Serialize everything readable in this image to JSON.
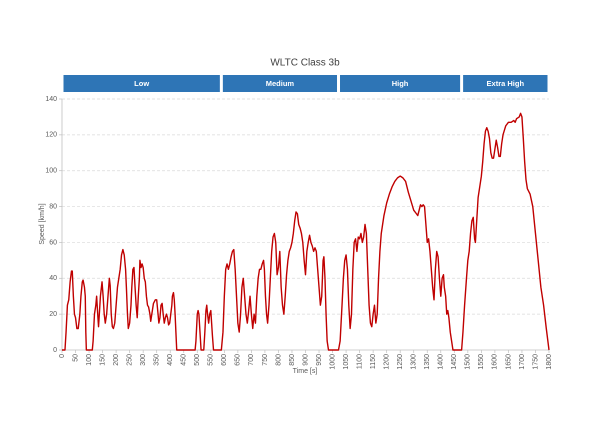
{
  "chart_data": {
    "type": "line",
    "title": "WLTC Class 3b",
    "x_label": "Time [s]",
    "y_label": "Speed [km/h]",
    "phases": [
      {
        "name": "Low",
        "start": 0,
        "end": 589
      },
      {
        "name": "Medium",
        "start": 589,
        "end": 1022
      },
      {
        "name": "High",
        "start": 1022,
        "end": 1477
      },
      {
        "name": "Extra High",
        "start": 1477,
        "end": 1800
      }
    ],
    "phase_color": "#2e75b6",
    "color": "#c00000",
    "grid": true,
    "xlim": [
      0,
      1800
    ],
    "ylim": [
      0,
      140
    ],
    "xticks": [
      0,
      50,
      100,
      150,
      200,
      250,
      300,
      350,
      400,
      450,
      500,
      550,
      600,
      650,
      700,
      750,
      800,
      850,
      900,
      950,
      1000,
      1050,
      1100,
      1150,
      1200,
      1250,
      1300,
      1350,
      1400,
      1450,
      1500,
      1550,
      1600,
      1650,
      1700,
      1750,
      1800
    ],
    "yticks": [
      0,
      20,
      40,
      60,
      80,
      100,
      120,
      140
    ],
    "x": [
      0,
      11,
      15,
      20,
      25,
      30,
      35,
      38,
      42,
      46,
      50,
      55,
      60,
      66,
      70,
      75,
      78,
      83,
      86,
      88,
      90,
      112,
      115,
      120,
      125,
      128,
      132,
      135,
      138,
      142,
      148,
      152,
      156,
      160,
      165,
      170,
      175,
      178,
      182,
      186,
      190,
      195,
      200,
      205,
      210,
      215,
      220,
      225,
      230,
      235,
      238,
      242,
      245,
      250,
      255,
      258,
      262,
      266,
      270,
      274,
      278,
      282,
      286,
      288,
      292,
      296,
      300,
      304,
      308,
      312,
      316,
      320,
      325,
      328,
      332,
      338,
      345,
      350,
      355,
      358,
      362,
      366,
      370,
      374,
      378,
      382,
      386,
      390,
      394,
      398,
      402,
      406,
      408,
      412,
      415,
      418,
      421,
      424,
      492,
      495,
      500,
      503,
      506,
      510,
      514,
      524,
      528,
      532,
      535,
      538,
      542,
      546,
      550,
      553,
      556,
      560,
      589,
      595,
      600,
      605,
      610,
      615,
      620,
      625,
      630,
      635,
      640,
      645,
      650,
      655,
      660,
      665,
      670,
      675,
      680,
      685,
      690,
      695,
      700,
      705,
      710,
      715,
      720,
      725,
      730,
      735,
      740,
      745,
      748,
      752,
      756,
      760,
      765,
      770,
      775,
      780,
      785,
      790,
      795,
      800,
      805,
      810,
      815,
      820,
      825,
      830,
      835,
      840,
      845,
      850,
      855,
      860,
      865,
      870,
      875,
      880,
      885,
      890,
      895,
      900,
      905,
      910,
      915,
      920,
      925,
      930,
      935,
      940,
      945,
      950,
      955,
      960,
      965,
      968,
      972,
      976,
      980,
      985,
      1022,
      1028,
      1035,
      1040,
      1045,
      1050,
      1055,
      1060,
      1065,
      1070,
      1075,
      1080,
      1085,
      1090,
      1095,
      1100,
      1105,
      1110,
      1115,
      1120,
      1125,
      1130,
      1135,
      1140,
      1145,
      1150,
      1155,
      1160,
      1165,
      1170,
      1175,
      1180,
      1190,
      1200,
      1210,
      1220,
      1230,
      1240,
      1250,
      1260,
      1270,
      1280,
      1290,
      1300,
      1310,
      1315,
      1320,
      1325,
      1330,
      1335,
      1340,
      1345,
      1350,
      1355,
      1360,
      1365,
      1370,
      1375,
      1380,
      1385,
      1390,
      1395,
      1400,
      1405,
      1410,
      1413,
      1418,
      1422,
      1426,
      1430,
      1435,
      1440,
      1445,
      1477,
      1482,
      1488,
      1495,
      1500,
      1505,
      1510,
      1515,
      1520,
      1525,
      1528,
      1532,
      1538,
      1545,
      1550,
      1555,
      1560,
      1565,
      1570,
      1575,
      1580,
      1585,
      1590,
      1595,
      1600,
      1605,
      1610,
      1615,
      1620,
      1625,
      1630,
      1640,
      1650,
      1660,
      1670,
      1675,
      1680,
      1690,
      1695,
      1700,
      1705,
      1710,
      1715,
      1720,
      1730,
      1740,
      1750,
      1760,
      1770,
      1780,
      1790,
      1800
    ],
    "values": [
      0,
      0,
      10,
      25,
      28,
      38,
      44,
      44,
      30,
      20,
      18,
      12,
      12,
      20,
      30,
      38,
      39,
      35,
      30,
      10,
      0,
      0,
      5,
      20,
      25,
      30,
      20,
      13,
      20,
      30,
      38,
      30,
      20,
      15,
      20,
      30,
      40,
      36,
      20,
      13,
      12,
      15,
      25,
      35,
      40,
      45,
      53,
      56,
      53,
      45,
      35,
      20,
      12,
      15,
      25,
      35,
      45,
      46,
      35,
      25,
      18,
      30,
      40,
      50,
      46,
      48,
      46,
      40,
      38,
      30,
      25,
      24,
      20,
      16,
      20,
      26,
      28,
      28,
      20,
      15,
      18,
      25,
      26,
      20,
      15,
      18,
      20,
      18,
      14,
      15,
      20,
      25,
      30,
      32,
      28,
      20,
      10,
      0,
      0,
      5,
      20,
      22,
      20,
      10,
      0,
      0,
      10,
      22,
      25,
      20,
      15,
      20,
      22,
      15,
      8,
      0,
      0,
      10,
      30,
      45,
      48,
      45,
      48,
      52,
      55,
      56,
      45,
      30,
      15,
      10,
      20,
      35,
      40,
      30,
      20,
      15,
      22,
      30,
      20,
      12,
      20,
      15,
      30,
      40,
      45,
      45,
      48,
      50,
      45,
      30,
      20,
      15,
      25,
      40,
      55,
      63,
      65,
      60,
      42,
      46,
      55,
      35,
      25,
      20,
      30,
      42,
      50,
      55,
      57,
      60,
      65,
      72,
      77,
      76,
      70,
      68,
      65,
      60,
      50,
      42,
      55,
      60,
      64,
      60,
      58,
      55,
      57,
      55,
      45,
      35,
      25,
      30,
      50,
      52,
      40,
      20,
      5,
      0,
      0,
      5,
      25,
      40,
      50,
      53,
      45,
      25,
      12,
      20,
      45,
      60,
      62,
      55,
      63,
      62,
      65,
      60,
      63,
      70,
      65,
      45,
      25,
      15,
      13,
      20,
      25,
      15,
      20,
      40,
      55,
      65,
      75,
      82,
      87,
      91,
      94,
      96,
      97,
      96,
      94,
      88,
      83,
      78,
      76,
      75,
      78,
      81,
      80,
      81,
      80,
      70,
      60,
      62,
      55,
      45,
      35,
      28,
      45,
      55,
      52,
      40,
      30,
      40,
      42,
      35,
      30,
      20,
      22,
      18,
      10,
      5,
      0,
      0,
      10,
      25,
      40,
      50,
      55,
      65,
      72,
      74,
      62,
      60,
      70,
      85,
      92,
      97,
      105,
      115,
      122,
      124,
      122,
      118,
      110,
      107,
      107,
      112,
      117,
      113,
      108,
      108,
      115,
      120,
      125,
      127,
      127,
      128,
      127,
      129,
      130,
      132,
      130,
      118,
      105,
      95,
      90,
      87,
      80,
      65,
      50,
      35,
      25,
      12,
      0
    ]
  }
}
